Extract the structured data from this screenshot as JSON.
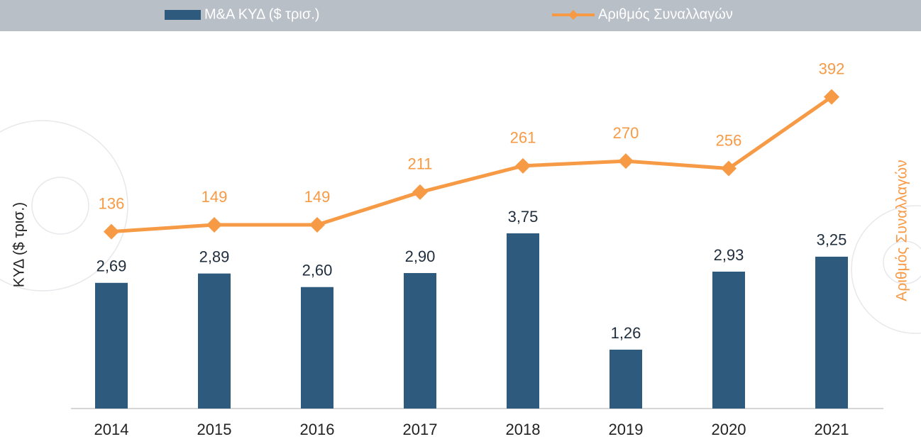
{
  "chart_data": {
    "type": "bar-line",
    "y_label": "ΚΥΔ ($ τρισ.)",
    "y2_label": "Αριθμός Συναλλαγών",
    "categories": [
      "2014",
      "2015",
      "2016",
      "2017",
      "2018",
      "2019",
      "2020",
      "2021"
    ],
    "series": [
      {
        "name": "M&A ΚΥΔ ($ τρισ.)",
        "type": "bar",
        "color": "#2e5a7e",
        "values": [
          2.69,
          2.89,
          2.6,
          2.9,
          3.75,
          1.26,
          2.93,
          3.25
        ],
        "value_labels": [
          "2,69",
          "2,89",
          "2,60",
          "2,90",
          "3,75",
          "1,26",
          "2,93",
          "3,25"
        ]
      },
      {
        "name": "Αριθμός Συναλλαγών",
        "type": "line",
        "axis": "y2",
        "color": "#f79a45",
        "values": [
          136,
          149,
          149,
          211,
          261,
          270,
          256,
          392
        ]
      }
    ],
    "ylim": [
      0,
      8
    ],
    "y2lim": [
      -200,
      510
    ]
  }
}
